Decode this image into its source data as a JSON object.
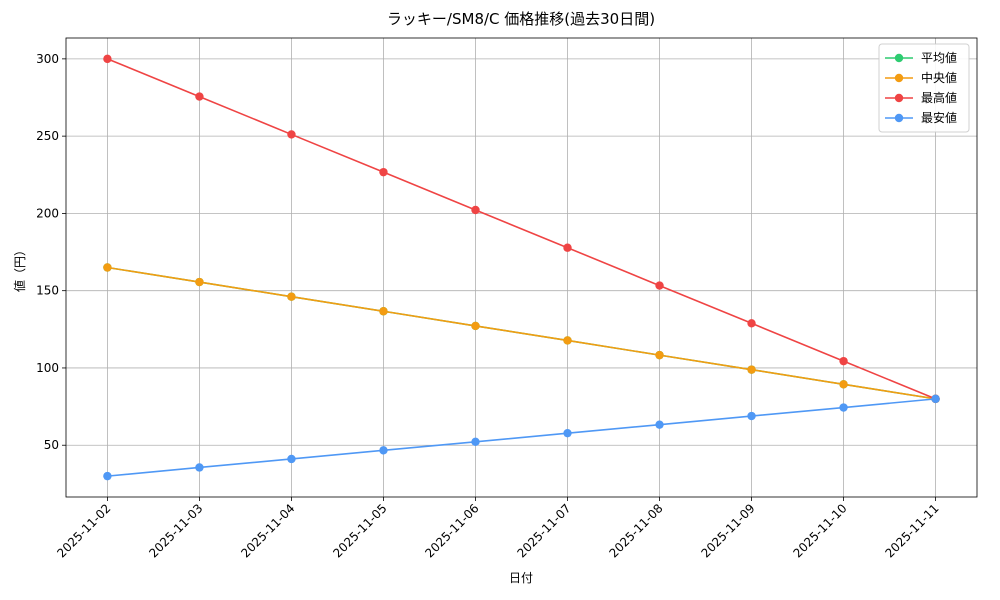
{
  "chart_data": {
    "type": "line",
    "title": "ラッキー/SM8/C 価格推移(過去30日間)",
    "xlabel": "日付",
    "ylabel": "値（円）",
    "categories": [
      "2025-11-02",
      "2025-11-03",
      "2025-11-04",
      "2025-11-05",
      "2025-11-06",
      "2025-11-07",
      "2025-11-08",
      "2025-11-09",
      "2025-11-10",
      "2025-11-11"
    ],
    "series": [
      {
        "name": "平均値",
        "color": "#2ecc71",
        "values": [
          165,
          155.6,
          146.1,
          136.7,
          127.2,
          117.8,
          108.3,
          98.9,
          89.4,
          80
        ]
      },
      {
        "name": "中央値",
        "color": "#f39c12",
        "values": [
          165,
          155.6,
          146.1,
          136.7,
          127.2,
          117.8,
          108.3,
          98.9,
          89.4,
          80
        ]
      },
      {
        "name": "最高値",
        "color": "#ef4444",
        "values": [
          300,
          275.6,
          251.1,
          226.7,
          202.2,
          177.8,
          153.3,
          128.9,
          104.4,
          80
        ]
      },
      {
        "name": "最安値",
        "color": "#4f98f5",
        "values": [
          30,
          35.6,
          41.1,
          46.7,
          52.2,
          57.8,
          63.3,
          68.9,
          74.4,
          80
        ]
      }
    ],
    "ylim": [
      16.5,
      313.5
    ],
    "yticks": [
      50,
      100,
      150,
      200,
      250,
      300
    ],
    "grid": true,
    "legend": "upper-right"
  }
}
